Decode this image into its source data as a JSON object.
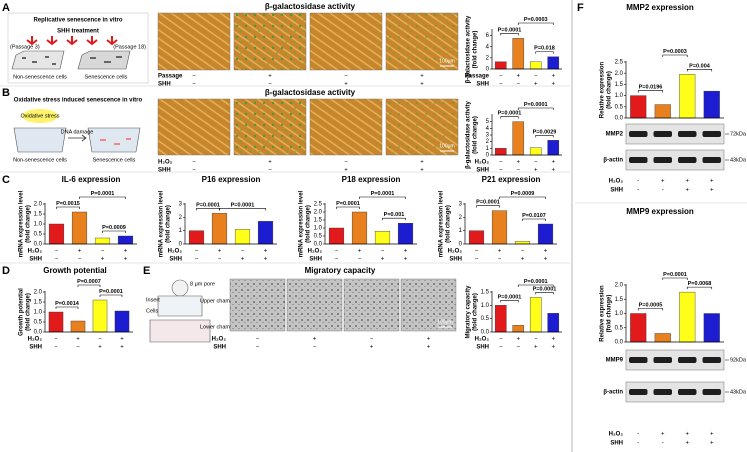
{
  "figure": {
    "panel_labels": [
      "A",
      "B",
      "C",
      "D",
      "E",
      "F"
    ],
    "a": {
      "schematic": {
        "title": "Replicative senescence in vitro",
        "treatment": "SHH treatment",
        "start": "(Passage 3)",
        "end": "(Passage 18)",
        "left_cells": "Non-senescence cells",
        "right_cells": "Senescence cells"
      },
      "title": "β-galactosidase activity",
      "scale_bar": "100μm",
      "chart": {
        "type": "bar",
        "ylabel": [
          "β-galactosidase activity",
          "(fold change)"
        ],
        "values": [
          1.3,
          5.5,
          1.3,
          2.2
        ],
        "colors": [
          "#e31a1c",
          "#e8801e",
          "#ffff1a",
          "#1c1cd0"
        ],
        "ylim": [
          0,
          7
        ],
        "yticks": [
          0,
          2,
          4,
          6
        ],
        "pvalues": [
          "P=0.0001",
          "P=0.0003",
          "P=0.018"
        ],
        "rows": [
          {
            "label": "Passage",
            "signs": [
              "−",
              "+",
              "−",
              "+"
            ]
          },
          {
            "label": "SHH",
            "signs": [
              "−",
              "−",
              "+",
              "+"
            ]
          }
        ]
      }
    },
    "b": {
      "schematic": {
        "title": "Oxidative stress induced senescence in vitro",
        "stress": "Oxidative stress",
        "damage": "DNA damage",
        "left_cells": "Non-senescence cells",
        "right_cells": "Senescence cells"
      },
      "title": "β-galactosidase activity",
      "scale_bar": "100μm",
      "chart": {
        "type": "bar",
        "ylabel": [
          "β-galactosidase activity",
          "(fold change)"
        ],
        "values": [
          1,
          5,
          1.1,
          2.2
        ],
        "colors": [
          "#e31a1c",
          "#e8801e",
          "#ffff1a",
          "#1c1cd0"
        ],
        "ylim": [
          0,
          6
        ],
        "yticks": [
          0,
          1,
          2,
          3,
          4,
          5
        ],
        "pvalues": [
          "P=0.0001",
          "P=0.0001",
          "P=0.0029"
        ],
        "rows": [
          {
            "label": "H₂O₂",
            "signs": [
              "−",
              "+",
              "−",
              "+"
            ]
          },
          {
            "label": "SHH",
            "signs": [
              "−",
              "−",
              "+",
              "+"
            ]
          }
        ]
      }
    },
    "c": [
      {
        "type": "bar",
        "title": "IL-6 expression",
        "ylabel": [
          "mRNA expression level",
          "(fold change)"
        ],
        "values": [
          1,
          1.6,
          0.3,
          0.4
        ],
        "colors": [
          "#e31a1c",
          "#e8801e",
          "#ffff1a",
          "#1c1cd0"
        ],
        "ylim": [
          0,
          2
        ],
        "yticks": [
          {
            "value": 0,
            "label": "0.0"
          },
          {
            "value": 0.5,
            "label": "0.5"
          },
          {
            "value": 1,
            "label": "1.0"
          },
          {
            "value": 1.5,
            "label": "1.5"
          },
          {
            "value": 2,
            "label": "2.0"
          }
        ],
        "pvalues": [
          "P=0.0015",
          "P=0.0001",
          "P=0.0009"
        ],
        "rows": [
          {
            "label": "H₂O₂",
            "signs": [
              "−",
              "+",
              "−",
              "+"
            ]
          },
          {
            "label": "SHH",
            "signs": [
              "−",
              "−",
              "+",
              "+"
            ]
          }
        ]
      },
      {
        "type": "bar",
        "title": "P16 expression",
        "ylabel": [
          "mRNA expression level",
          "(fold change)"
        ],
        "values": [
          1,
          2.3,
          1.1,
          1.7
        ],
        "colors": [
          "#e31a1c",
          "#e8801e",
          "#ffff1a",
          "#1c1cd0"
        ],
        "ylim": [
          0,
          3
        ],
        "yticks": [
          0,
          1,
          2,
          3
        ],
        "pvalues": [
          "P=0.0001",
          "P=0.0001"
        ],
        "rows": [
          {
            "label": "H₂O₂",
            "signs": [
              "−",
              "+",
              "−",
              "+"
            ]
          },
          {
            "label": "SHH",
            "signs": [
              "−",
              "−",
              "+",
              "+"
            ]
          }
        ]
      },
      {
        "type": "bar",
        "title": "P18 expression",
        "ylabel": [
          "mRNA expression level",
          "(fold change)"
        ],
        "values": [
          1,
          2,
          0.8,
          1.3
        ],
        "colors": [
          "#e31a1c",
          "#e8801e",
          "#ffff1a",
          "#1c1cd0"
        ],
        "ylim": [
          0,
          2.5
        ],
        "yticks": [
          {
            "value": 0,
            "label": "0.0"
          },
          {
            "value": 0.5,
            "label": "0.5"
          },
          {
            "value": 1,
            "label": "1.0"
          },
          {
            "value": 1.5,
            "label": "1.5"
          },
          {
            "value": 2,
            "label": "2.0"
          },
          {
            "value": 2.5,
            "label": "2.5"
          }
        ],
        "pvalues": [
          "P=0.0001",
          "P=0.0001",
          "P=0.001"
        ],
        "rows": [
          {
            "label": "H₂O₂",
            "signs": [
              "−",
              "+",
              "−",
              "+"
            ]
          },
          {
            "label": "SHH",
            "signs": [
              "−",
              "−",
              "+",
              "+"
            ]
          }
        ]
      },
      {
        "type": "bar",
        "title": "P21 expression",
        "ylabel": [
          "mRNA expression level",
          "(fold change)"
        ],
        "values": [
          1,
          2.5,
          0.2,
          1.5
        ],
        "colors": [
          "#e31a1c",
          "#e8801e",
          "#ffff1a",
          "#1c1cd0"
        ],
        "ylim": [
          0,
          3
        ],
        "yticks": [
          0,
          1,
          2,
          3
        ],
        "pvalues": [
          "P=0.0001",
          "P=0.0009",
          "P=0.0107"
        ],
        "rows": [
          {
            "label": "H₂O₂",
            "signs": [
              "−",
              "+",
              "−",
              "+"
            ]
          },
          {
            "label": "SHH",
            "signs": [
              "−",
              "−",
              "+",
              "+"
            ]
          }
        ]
      }
    ],
    "d": {
      "type": "bar",
      "title": "Growth potential",
      "ylabel": [
        "Growth potential",
        "(fold change)"
      ],
      "values": [
        1,
        0.55,
        1.6,
        1.05
      ],
      "colors": [
        "#e31a1c",
        "#e8801e",
        "#ffff1a",
        "#1c1cd0"
      ],
      "ylim": [
        0,
        2
      ],
      "yticks": [
        {
          "value": 0,
          "label": "0.0"
        },
        {
          "value": 0.5,
          "label": "0.5"
        },
        {
          "value": 1,
          "label": "1.0"
        },
        {
          "value": 1.5,
          "label": "1.5"
        },
        {
          "value": 2,
          "label": "2.0"
        }
      ],
      "pvalues": [
        "P=0.0014",
        "P=0.0007",
        "P=0.0001"
      ],
      "rows": [
        {
          "label": "H₂O₂",
          "signs": [
            "−",
            "+",
            "−",
            "+"
          ]
        },
        {
          "label": "SHH",
          "signs": [
            "−",
            "−",
            "+",
            "+"
          ]
        }
      ]
    },
    "e": {
      "schematic": {
        "pore": "8 μm pore",
        "upper": "Upper chamber",
        "insert": "Insert",
        "cells": "Cells",
        "lower": "Lower chamber"
      },
      "title": "Migratory capacity",
      "scale_bar": "100μm",
      "chart": {
        "type": "bar",
        "ylabel": [
          "Migratory capacity",
          "(fold change)"
        ],
        "values": [
          1,
          0.25,
          1.3,
          0.7
        ],
        "colors": [
          "#e31a1c",
          "#e8801e",
          "#ffff1a",
          "#1c1cd0"
        ],
        "ylim": [
          0,
          1.5
        ],
        "yticks": [
          {
            "value": 0,
            "label": "0.0"
          },
          {
            "value": 0.5,
            "label": "0.5"
          },
          {
            "value": 1,
            "label": "1.0"
          },
          {
            "value": 1.5,
            "label": "1.5"
          }
        ],
        "pvalues": [
          "P=0.0001",
          "P=0.0001",
          "P=0.0001"
        ],
        "rows": [
          {
            "label": "H₂O₂",
            "signs": [
              "−",
              "+",
              "−",
              "+"
            ]
          },
          {
            "label": "SHH",
            "signs": [
              "−",
              "−",
              "+",
              "+"
            ]
          }
        ]
      }
    },
    "f": [
      {
        "blot": {
          "bands": [
            "MMP2",
            "β-actin"
          ],
          "sizes": [
            "72kDa",
            "43kDa"
          ]
        },
        "chart": {
          "type": "bar",
          "title": "MMP2 expression",
          "ylabel": [
            "Relative expression",
            "(fold change)"
          ],
          "values": [
            1,
            0.6,
            1.95,
            1.2
          ],
          "colors": [
            "#e31a1c",
            "#e8801e",
            "#ffff1a",
            "#1c1cd0"
          ],
          "ylim": [
            0,
            2.5
          ],
          "yticks": [
            {
              "value": 0,
              "label": "0.0"
            },
            {
              "value": 0.5,
              "label": "0.5"
            },
            {
              "value": 1,
              "label": "1.0"
            },
            {
              "value": 1.5,
              "label": "1.5"
            },
            {
              "value": 2,
              "label": "2.0"
            },
            {
              "value": 2.5,
              "label": "2.5"
            }
          ],
          "pvalues": [
            "P=0.0196",
            "P=0.0003",
            "P=0.004"
          ],
          "rows": [
            {
              "label": "H₂O₂",
              "signs": [
                "-",
                "+",
                "+",
                "+"
              ]
            },
            {
              "label": "SHH",
              "signs": [
                "-",
                "-",
                "+",
                "+"
              ]
            }
          ]
        }
      },
      {
        "blot": {
          "bands": [
            "MMP9",
            "β-actin"
          ],
          "sizes": [
            "92kDa",
            "43kDa"
          ]
        },
        "chart": {
          "type": "bar",
          "title": "MMP9 expression",
          "ylabel": [
            "Relative expression",
            "(fold change)"
          ],
          "values": [
            1,
            0.3,
            1.75,
            1
          ],
          "colors": [
            "#e31a1c",
            "#e8801e",
            "#ffff1a",
            "#1c1cd0"
          ],
          "ylim": [
            0,
            2
          ],
          "yticks": [
            {
              "value": 0,
              "label": "0.0"
            },
            {
              "value": 0.5,
              "label": "0.5"
            },
            {
              "value": 1,
              "label": "1.0"
            },
            {
              "value": 1.5,
              "label": "1.5"
            },
            {
              "value": 2,
              "label": "2.0"
            }
          ],
          "pvalues": [
            "P=0.0005",
            "P=0.0001",
            "P=0.0068"
          ],
          "rows": [
            {
              "label": "H₂O₂",
              "signs": [
                "-",
                "+",
                "+",
                "+"
              ]
            },
            {
              "label": "SHH",
              "signs": [
                "-",
                "-",
                "+",
                "+"
              ]
            }
          ]
        }
      }
    ]
  }
}
